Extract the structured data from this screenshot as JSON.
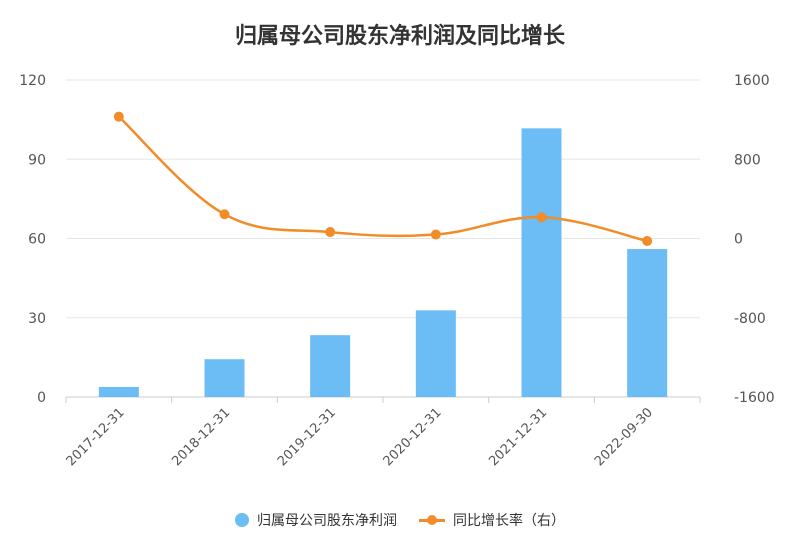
{
  "chart_data": {
    "type": "bar",
    "title": "归属母公司股东净利润及同比增长",
    "categories": [
      "2017-12-31",
      "2018-12-31",
      "2019-12-31",
      "2020-12-31",
      "2021-12-31",
      "2022-09-30"
    ],
    "series": [
      {
        "name": "归属母公司股东净利润",
        "type": "bar",
        "axis": "left",
        "values": [
          3.8,
          14.3,
          23.4,
          32.8,
          101.7,
          56.0
        ]
      },
      {
        "name": "同比增长率（右）",
        "type": "line",
        "axis": "right",
        "values": [
          1230,
          245,
          65,
          40,
          215,
          -25
        ]
      }
    ],
    "y_left": {
      "ylim": [
        0,
        120
      ],
      "ticks": [
        "0",
        "30",
        "60",
        "90",
        "120"
      ]
    },
    "y_right": {
      "ylim": [
        -1600,
        1600
      ],
      "ticks": [
        "-1600",
        "-800",
        "0",
        "800",
        "1600"
      ]
    },
    "grid": true,
    "legend_position": "bottom",
    "colors": {
      "bar": "#6cbcf5",
      "line": "#f28c28",
      "grid": "#e6e6e6",
      "axis": "#cccccc"
    }
  }
}
